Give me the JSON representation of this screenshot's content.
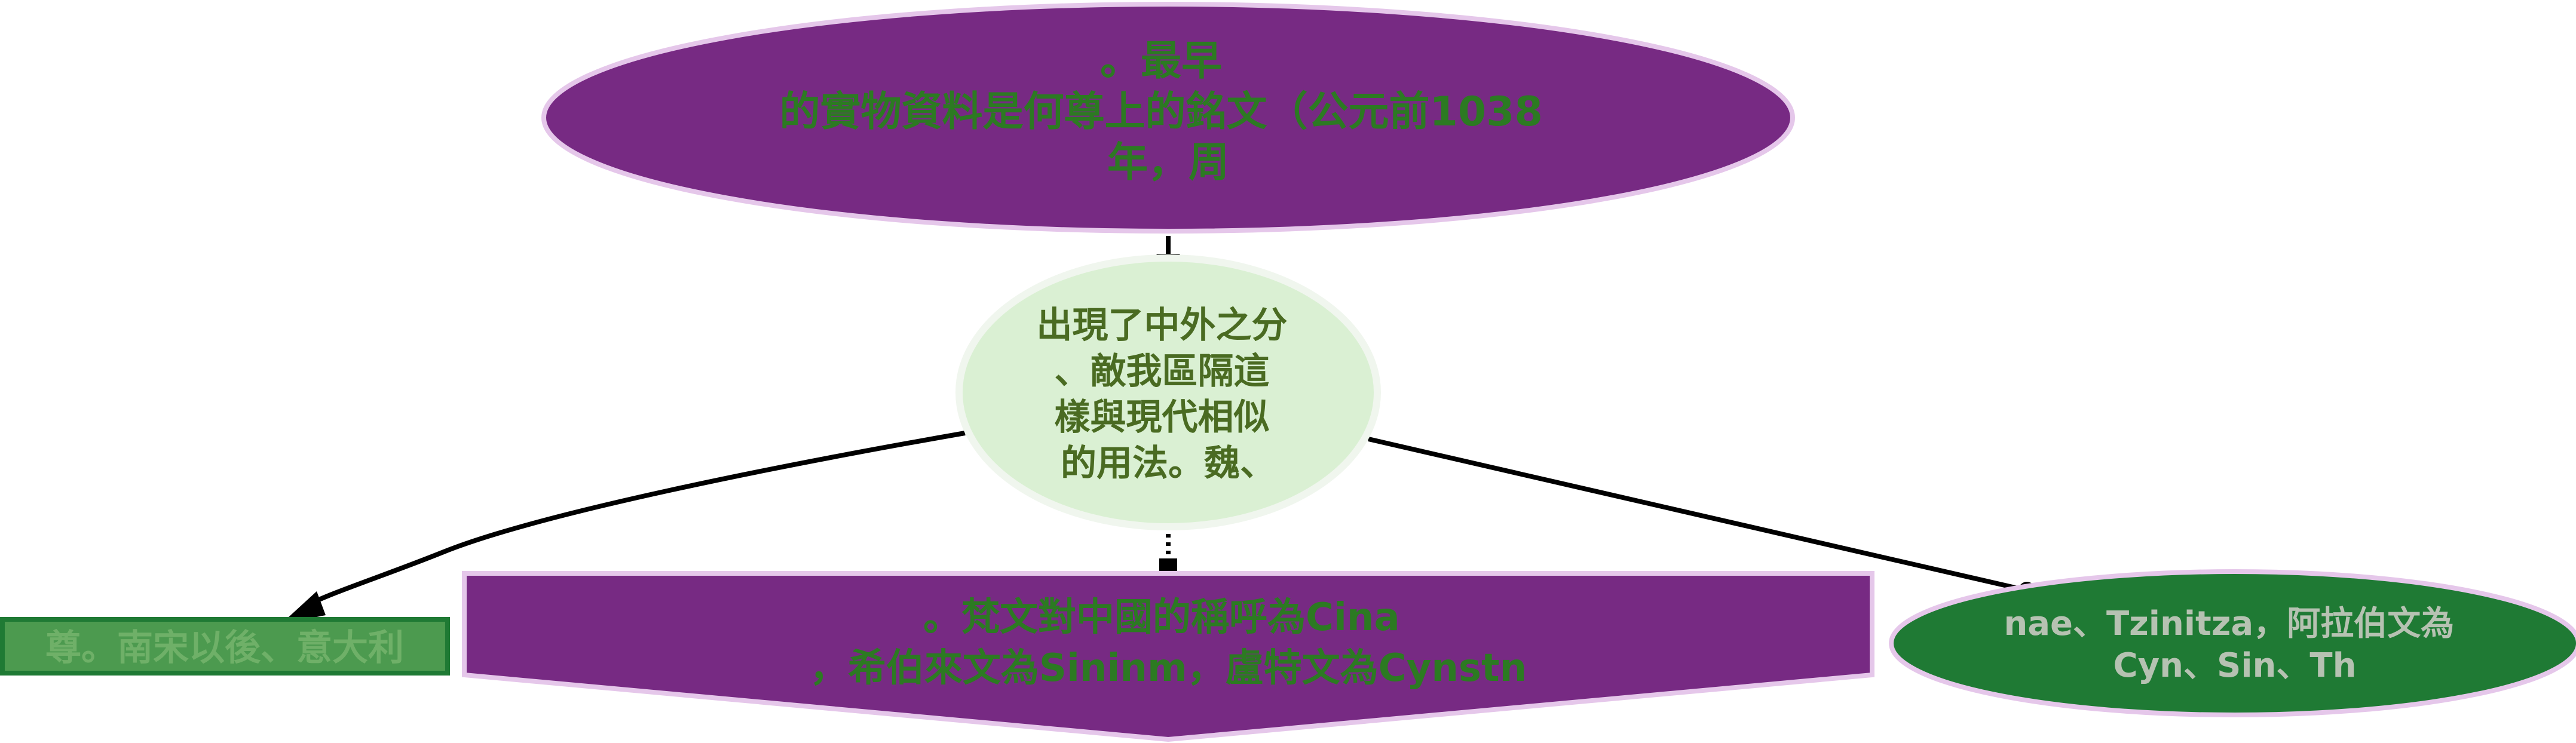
{
  "colors": {
    "purple": "#772a83",
    "purple_border": "#e5c7ea",
    "dark_green": "#1f7a34",
    "light_green_fill": "#daf0d3",
    "light_green_border": "#f0f6ee",
    "mid_green_fill": "#4c9a4f",
    "green_text": "#2c7a22",
    "olive_text": "#4a6b22",
    "grey_text": "#b6c2b2",
    "edge": "#000000"
  },
  "nodes": {
    "top": {
      "shape": "ellipse",
      "lines": [
        "。最早",
        "的實物資料是何尊上的銘文（公元前1038",
        "年，周"
      ]
    },
    "middle": {
      "shape": "ellipse",
      "lines": [
        "出現了中外之分",
        "、敵我區隔這",
        "樣與現代相似",
        "的用法。魏、"
      ]
    },
    "left": {
      "shape": "rectangle",
      "lines": [
        "尊。南宋以後、意大利"
      ]
    },
    "bottom": {
      "shape": "pentagon",
      "lines": [
        "。梵文對中國的稱呼為Cina",
        "，希伯來文為Sininm，盧特文為Cynstn"
      ]
    },
    "right": {
      "shape": "ellipse",
      "lines": [
        "nae、Tzinitza，阿拉伯文為",
        "Cyn、Sin、Th"
      ]
    }
  },
  "edges": [
    {
      "from": "top",
      "to": "middle",
      "style": "solid",
      "head": "arrow"
    },
    {
      "from": "middle",
      "to": "left",
      "style": "solid",
      "head": "arrow"
    },
    {
      "from": "middle",
      "to": "bottom",
      "style": "dotted",
      "head": "square"
    },
    {
      "from": "middle",
      "to": "right",
      "style": "solid",
      "head": "dot"
    }
  ]
}
